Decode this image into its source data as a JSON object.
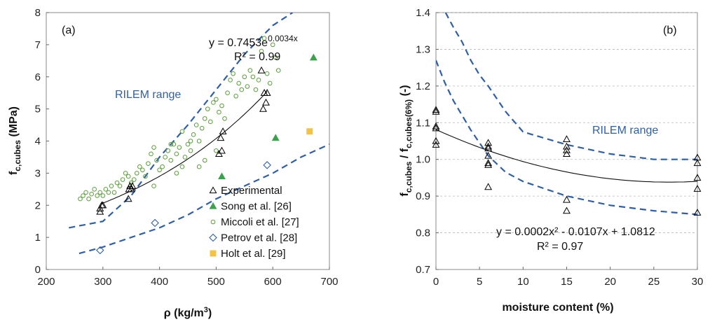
{
  "chart_data": [
    {
      "type": "scatter",
      "panel_label": "(a)",
      "xlabel_main": "ρ (kg/m",
      "xlabel_sup": "3",
      "xlabel_end": ")",
      "ylabel_main": "f",
      "ylabel_sub": "c,cubes",
      "ylabel_end": " (MPa)",
      "xlim": [
        200,
        700
      ],
      "ylim": [
        0,
        8
      ],
      "xticks": [
        "200",
        "300",
        "400",
        "500",
        "600",
        "700"
      ],
      "yticks": [
        "0",
        "1",
        "2",
        "3",
        "4",
        "5",
        "6",
        "7",
        "8"
      ],
      "equation_main": "y = 0.7453e",
      "equation_sup": "0.0034x",
      "r2": "R² = 0.99",
      "range_label": "RILEM range",
      "legend_position": "bottom-right",
      "series": [
        {
          "name": "Experimental",
          "marker": "triangle-open",
          "color": "#000000",
          "points": [
            [
              295,
              1.8
            ],
            [
              295,
              1.9
            ],
            [
              298,
              2.0
            ],
            [
              300,
              2.0
            ],
            [
              345,
              2.2
            ],
            [
              346,
              2.5
            ],
            [
              348,
              2.6
            ],
            [
              350,
              2.5
            ],
            [
              352,
              2.6
            ],
            [
              505,
              3.6
            ],
            [
              510,
              3.7
            ],
            [
              508,
              4.1
            ],
            [
              512,
              4.3
            ],
            [
              583,
              5.0
            ],
            [
              585,
              5.5
            ],
            [
              588,
              5.2
            ],
            [
              590,
              5.5
            ],
            [
              580,
              6.2
            ]
          ]
        },
        {
          "name": "Song et al. [26]",
          "marker": "triangle-filled",
          "color": "#3aa24a",
          "points": [
            [
              510,
              2.9
            ],
            [
              605,
              4.1
            ],
            [
              672,
              6.6
            ]
          ]
        },
        {
          "name": "Miccoli et al. [27]",
          "marker": "circle-open",
          "color": "#5a9e3a",
          "points": [
            [
              260,
              2.2
            ],
            [
              265,
              2.3
            ],
            [
              270,
              2.4
            ],
            [
              275,
              2.2
            ],
            [
              280,
              2.35
            ],
            [
              285,
              2.5
            ],
            [
              290,
              2.3
            ],
            [
              295,
              2.4
            ],
            [
              300,
              2.3
            ],
            [
              305,
              2.5
            ],
            [
              310,
              2.4
            ],
            [
              315,
              2.6
            ],
            [
              320,
              2.4
            ],
            [
              325,
              2.7
            ],
            [
              330,
              2.6
            ],
            [
              335,
              2.8
            ],
            [
              340,
              3.0
            ],
            [
              345,
              2.9
            ],
            [
              350,
              2.7
            ],
            [
              355,
              2.8
            ],
            [
              360,
              3.0
            ],
            [
              365,
              3.2
            ],
            [
              370,
              3.1
            ],
            [
              375,
              2.9
            ],
            [
              380,
              3.3
            ],
            [
              385,
              3.6
            ],
            [
              390,
              3.8
            ],
            [
              395,
              3.4
            ],
            [
              400,
              3.1
            ],
            [
              405,
              3.2
            ],
            [
              410,
              3.5
            ],
            [
              415,
              3.7
            ],
            [
              420,
              3.4
            ],
            [
              425,
              3.9
            ],
            [
              430,
              3.6
            ],
            [
              435,
              3.8
            ],
            [
              440,
              4.3
            ],
            [
              445,
              3.5
            ],
            [
              450,
              3.9
            ],
            [
              455,
              3.7
            ],
            [
              460,
              4.2
            ],
            [
              465,
              4.5
            ],
            [
              470,
              4.0
            ],
            [
              475,
              4.4
            ],
            [
              480,
              4.7
            ],
            [
              485,
              5.0
            ],
            [
              490,
              4.6
            ],
            [
              495,
              5.2
            ],
            [
              500,
              5.3
            ],
            [
              505,
              4.9
            ],
            [
              510,
              5.1
            ],
            [
              515,
              4.7
            ],
            [
              520,
              5.5
            ],
            [
              525,
              5.9
            ],
            [
              530,
              6.1
            ],
            [
              535,
              5.4
            ],
            [
              540,
              5.8
            ],
            [
              545,
              5.6
            ],
            [
              550,
              6.0
            ],
            [
              555,
              5.7
            ],
            [
              560,
              6.2
            ],
            [
              565,
              6.0
            ],
            [
              570,
              5.6
            ],
            [
              575,
              5.9
            ],
            [
              580,
              6.8
            ],
            [
              585,
              7.2
            ],
            [
              590,
              6.1
            ],
            [
              595,
              5.8
            ],
            [
              600,
              7.0
            ],
            [
              605,
              6.6
            ],
            [
              610,
              6.2
            ],
            [
              390,
              2.6
            ],
            [
              430,
              3.0
            ],
            [
              470,
              3.2
            ],
            [
              500,
              3.7
            ],
            [
              420,
              3.9
            ],
            [
              455,
              4.0
            ],
            [
              440,
              3.2
            ],
            [
              480,
              3.4
            ]
          ]
        },
        {
          "name": "Petrov et al. [28]",
          "marker": "diamond-open",
          "color": "#2e5fa8",
          "points": [
            [
              295,
              0.6
            ],
            [
              392,
              1.45
            ],
            [
              590,
              3.25
            ]
          ]
        },
        {
          "name": "Holt et al. [29]",
          "marker": "square-filled",
          "color": "#f5c342",
          "points": [
            [
              665,
              4.3
            ]
          ]
        }
      ],
      "fit_curve": {
        "a": 0.7453,
        "b": 0.0034,
        "x_range": [
          295,
          590
        ]
      },
      "rilem_upper": [
        [
          240,
          1.3
        ],
        [
          300,
          1.5
        ],
        [
          350,
          2.3
        ],
        [
          400,
          3.5
        ],
        [
          450,
          4.5
        ],
        [
          500,
          5.6
        ],
        [
          550,
          6.7
        ],
        [
          600,
          7.6
        ],
        [
          635,
          8.0
        ]
      ],
      "rilem_lower": [
        [
          258,
          0.5
        ],
        [
          300,
          0.7
        ],
        [
          350,
          1.0
        ],
        [
          400,
          1.3
        ],
        [
          450,
          1.7
        ],
        [
          500,
          2.2
        ],
        [
          550,
          2.6
        ],
        [
          600,
          3.0
        ],
        [
          650,
          3.5
        ],
        [
          700,
          3.9
        ]
      ]
    },
    {
      "type": "scatter",
      "panel_label": "(b)",
      "xlabel_main": "moisture content (%)",
      "ylabel_main": "f",
      "ylabel_sub": "c,cubes",
      "ylabel_mid": " / f",
      "ylabel_sub2": "c,cubes(6%)",
      "ylabel_end": " (-)",
      "xlim": [
        0,
        30
      ],
      "ylim": [
        0.7,
        1.4
      ],
      "xticks": [
        "0",
        "5",
        "10",
        "15",
        "20",
        "25",
        "30"
      ],
      "yticks": [
        "0.7",
        "0.8",
        "0.9",
        "1.0",
        "1.1",
        "1.2",
        "1.3",
        "1.4"
      ],
      "equation": "y = 0.0002x² - 0.0107x + 1.0812",
      "r2": "R² = 0.97",
      "range_label": "RILEM range",
      "series": [
        {
          "name": "Experimental",
          "marker": "triangle-open",
          "color": "#000000",
          "points": [
            [
              0,
              1.135
            ],
            [
              0,
              1.13
            ],
            [
              0,
              1.09
            ],
            [
              0,
              1.085
            ],
            [
              0,
              1.05
            ],
            [
              0,
              1.04
            ],
            [
              6,
              1.045
            ],
            [
              6,
              1.035
            ],
            [
              6,
              1.03
            ],
            [
              6,
              1.01
            ],
            [
              6,
              0.99
            ],
            [
              6,
              0.985
            ],
            [
              6,
              0.925
            ],
            [
              15,
              1.055
            ],
            [
              15,
              1.035
            ],
            [
              15,
              1.025
            ],
            [
              15,
              1.015
            ],
            [
              15,
              0.89
            ],
            [
              15,
              0.86
            ],
            [
              30,
              1.005
            ],
            [
              30,
              0.99
            ],
            [
              30,
              0.95
            ],
            [
              30,
              0.92
            ],
            [
              30,
              0.855
            ]
          ]
        }
      ],
      "fit_curve": {
        "coefficients": [
          0.0002,
          -0.0107,
          1.0812
        ],
        "x_range": [
          0,
          30
        ]
      },
      "rilem_upper": [
        [
          1.1,
          1.4
        ],
        [
          2,
          1.36
        ],
        [
          3,
          1.32
        ],
        [
          4,
          1.27
        ],
        [
          5,
          1.23
        ],
        [
          6,
          1.2
        ],
        [
          8,
          1.13
        ],
        [
          10,
          1.075
        ],
        [
          15,
          1.04
        ],
        [
          20,
          1.015
        ],
        [
          25,
          1.0
        ],
        [
          30,
          1.0
        ]
      ],
      "rilem_lower": [
        [
          0,
          1.27
        ],
        [
          1,
          1.21
        ],
        [
          2,
          1.16
        ],
        [
          3,
          1.12
        ],
        [
          4,
          1.08
        ],
        [
          5,
          1.045
        ],
        [
          6,
          1.01
        ],
        [
          8,
          0.965
        ],
        [
          10,
          0.94
        ],
        [
          15,
          0.9
        ],
        [
          20,
          0.875
        ],
        [
          25,
          0.86
        ],
        [
          30,
          0.85
        ]
      ]
    }
  ]
}
